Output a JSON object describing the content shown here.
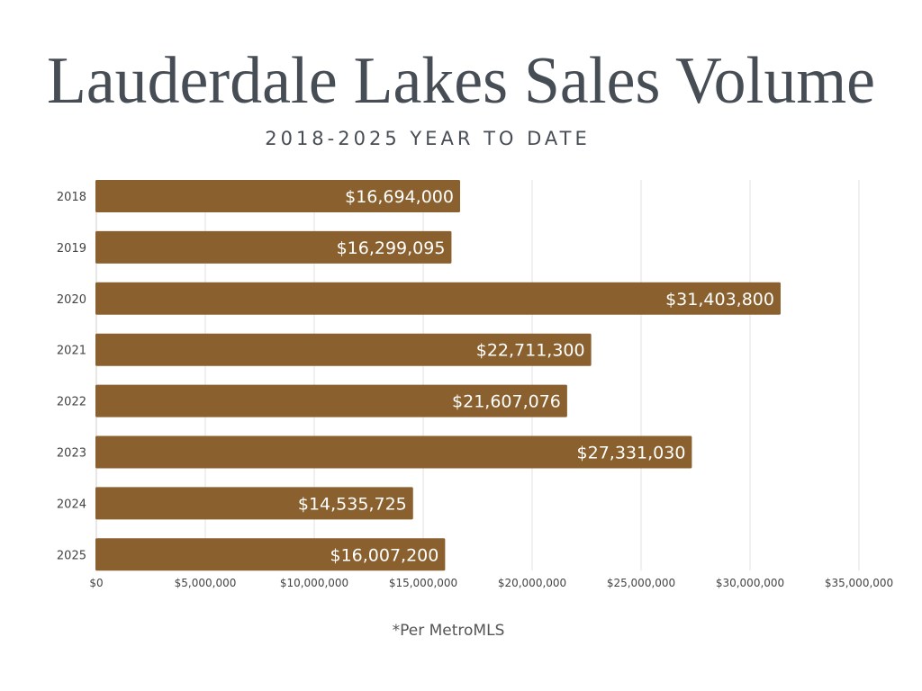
{
  "chart_data": {
    "type": "bar",
    "orientation": "horizontal",
    "title": "Lauderdale Lakes Sales Volume",
    "subtitle": "2018-2025 YEAR TO DATE",
    "categories": [
      "2018",
      "2019",
      "2020",
      "2021",
      "2022",
      "2023",
      "2024",
      "2025"
    ],
    "values": [
      16694000,
      16299095,
      31403800,
      22711300,
      21607076,
      27331030,
      14535725,
      16007200
    ],
    "data_labels": [
      "$16,694,000",
      "$16,299,095",
      "$31,403,800",
      "$22,711,300",
      "$21,607,076",
      "$27,331,030",
      "$14,535,725",
      "$16,007,200"
    ],
    "xlim": [
      0,
      35000000
    ],
    "x_ticks": [
      0,
      5000000,
      10000000,
      15000000,
      20000000,
      25000000,
      30000000,
      35000000
    ],
    "x_tick_labels": [
      "$0",
      "$5,000,000",
      "$10,000,000",
      "$15,000,000",
      "$20,000,000",
      "$25,000,000",
      "$30,000,000",
      "$35,000,000"
    ],
    "xlabel": "",
    "ylabel": "",
    "grid": true,
    "legend": "none",
    "bar_color": "#8a612e",
    "footnote": "*Per MetroMLS"
  }
}
